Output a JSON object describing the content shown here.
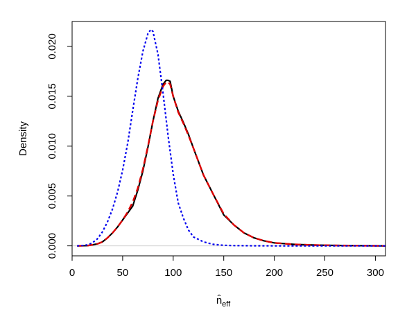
{
  "chart_data": {
    "type": "line",
    "title": "",
    "xlabel": "n̂",
    "xlabel_subscript": "eff",
    "ylabel": "Density",
    "xlim": [
      0,
      310
    ],
    "ylim": [
      -0.001,
      0.0225
    ],
    "xticks": [
      0,
      50,
      100,
      150,
      200,
      250,
      300
    ],
    "yticks": [
      0.0,
      0.005,
      0.01,
      0.015,
      0.02
    ],
    "ytick_labels": [
      "0.000",
      "0.005",
      "0.010",
      "0.015",
      "0.020"
    ],
    "grid": false,
    "legend": "none",
    "series": [
      {
        "style": "solid",
        "color": "#000000",
        "x": [
          5,
          15,
          20,
          25,
          30,
          35,
          40,
          45,
          50,
          55,
          60,
          65,
          70,
          75,
          80,
          85,
          90,
          93,
          95,
          97,
          100,
          105,
          110,
          115,
          120,
          130,
          140,
          150,
          160,
          170,
          180,
          190,
          200,
          220,
          240,
          260,
          280,
          310
        ],
        "y": [
          0.0,
          2e-05,
          0.0001,
          0.0002,
          0.0004,
          0.0008,
          0.0013,
          0.0019,
          0.0026,
          0.0033,
          0.004,
          0.0056,
          0.0075,
          0.0099,
          0.0125,
          0.0148,
          0.0162,
          0.0166,
          0.0166,
          0.0165,
          0.015,
          0.0135,
          0.0124,
          0.0112,
          0.0098,
          0.0071,
          0.0051,
          0.0031,
          0.0021,
          0.0013,
          0.0008,
          0.0005,
          0.0003,
          0.00015,
          8e-05,
          4e-05,
          2e-05,
          0.0
        ]
      },
      {
        "style": "dashed",
        "color": "#dd0000",
        "x": [
          5,
          15,
          20,
          25,
          30,
          35,
          40,
          45,
          50,
          55,
          60,
          65,
          70,
          75,
          80,
          85,
          90,
          93,
          95,
          97,
          100,
          105,
          110,
          115,
          120,
          130,
          140,
          150,
          160,
          170,
          180,
          190,
          200,
          220,
          240,
          260,
          280,
          310
        ],
        "y": [
          0.0,
          2e-05,
          0.0001,
          0.0002,
          0.0004,
          0.0008,
          0.0013,
          0.0019,
          0.0026,
          0.0034,
          0.0044,
          0.0058,
          0.0077,
          0.01,
          0.0125,
          0.0146,
          0.016,
          0.0164,
          0.0164,
          0.0162,
          0.015,
          0.0134,
          0.0123,
          0.0111,
          0.0098,
          0.0071,
          0.0051,
          0.0032,
          0.0021,
          0.0013,
          0.0008,
          0.0005,
          0.0003,
          0.00015,
          8e-05,
          4e-05,
          2e-05,
          0.0
        ]
      },
      {
        "style": "dotted",
        "color": "#0000ee",
        "x": [
          5,
          10,
          15,
          20,
          25,
          30,
          35,
          40,
          45,
          50,
          55,
          60,
          65,
          70,
          75,
          78,
          80,
          85,
          90,
          95,
          100,
          105,
          110,
          115,
          120,
          130,
          140,
          150,
          160,
          180,
          200,
          240,
          310
        ],
        "y": [
          0.0,
          3e-05,
          0.0001,
          0.0003,
          0.0007,
          0.0014,
          0.0024,
          0.0037,
          0.0054,
          0.0076,
          0.0103,
          0.0136,
          0.0168,
          0.0195,
          0.0213,
          0.0217,
          0.0215,
          0.0192,
          0.0153,
          0.011,
          0.0072,
          0.0043,
          0.0028,
          0.0016,
          0.0009,
          0.0004,
          0.00015,
          6e-05,
          3e-05,
          1e-05,
          0.0,
          0.0,
          0.0
        ]
      }
    ]
  }
}
